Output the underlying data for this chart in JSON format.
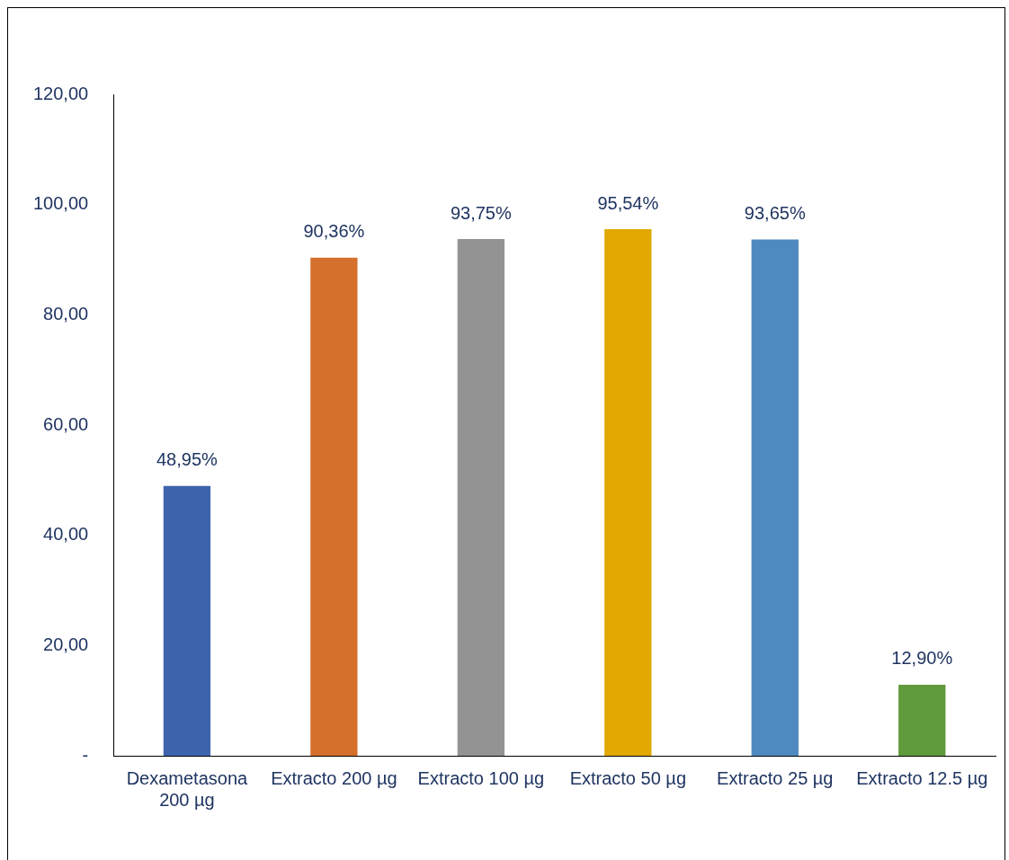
{
  "chart_data": {
    "type": "bar",
    "categories": [
      "Dexametasona 200 µg",
      "Extracto 200 µg",
      "Extracto 100 µg",
      "Extracto 50 µg",
      "Extracto 25 µg",
      "Extracto 12.5 µg"
    ],
    "values": [
      48.95,
      90.36,
      93.75,
      95.54,
      93.65,
      12.9
    ],
    "colors": [
      "#3e64ae",
      "#d4702c",
      "#939393",
      "#e0a800",
      "#4e8abf",
      "#5f9a3c"
    ],
    "value_labels": [
      "48,95%",
      "90,36%",
      "93,75%",
      "95,54%",
      "93,65%",
      "12,90%"
    ],
    "ylim": [
      0,
      120
    ],
    "yticks": [
      {
        "value": 0,
        "label": "-"
      },
      {
        "value": 20,
        "label": "20,00"
      },
      {
        "value": 40,
        "label": "40,00"
      },
      {
        "value": 60,
        "label": "60,00"
      },
      {
        "value": 80,
        "label": "80,00"
      },
      {
        "value": 100,
        "label": "100,00"
      },
      {
        "value": 120,
        "label": "120,00"
      }
    ],
    "grid": false,
    "legend": false
  }
}
